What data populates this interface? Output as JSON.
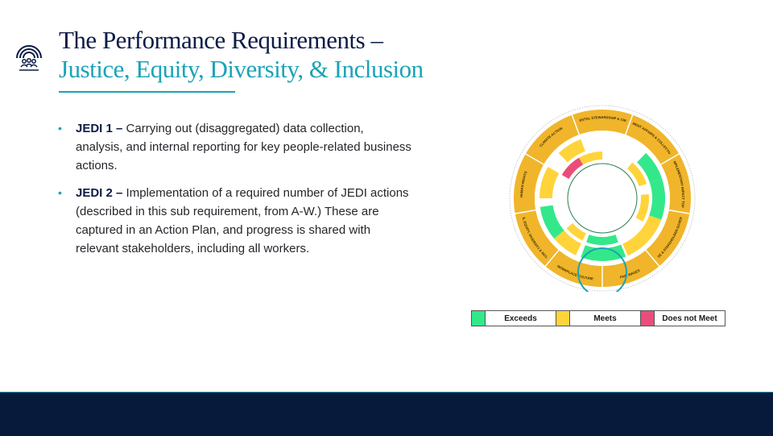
{
  "title": {
    "line1": "The Performance Requirements –",
    "line2": "Justice, Equity, Diversity, & Inclusion"
  },
  "bullets": [
    {
      "label": "JEDI 1 –",
      "text": " Carrying out (disaggregated) data collection, analysis, and internal reporting for key people-related business actions."
    },
    {
      "label": "JEDI 2 –",
      "text": " Implementation of a required number of JEDI actions (described in this sub requirement, from A-W.) These are captured in an Action Plan, and progress is shared with relevant stakeholders, including all workers."
    }
  ],
  "wheel": {
    "segments": [
      "GOVERNMENT AFFAIRS & COLLECTIVE ACTION",
      "COMPLEMENTARY IMPACT TOPICS",
      "PURPOSE & STAKEHOLDER GOVERNANCE",
      "FAIR WAGES",
      "WORKPLACE CULTURE",
      "JUSTICE, EQUITY, DIVERSITY & INCLUSION",
      "HUMAN RIGHTS",
      "CLIMATE ACTION",
      "ENVIRONMENTAL STEWARDSHIP & CIRCULARITY"
    ],
    "colors": {
      "exceeds": "#33e88a",
      "meets": "#ffd43a",
      "does_not_meet": "#ea4d7a",
      "ring": "#f0b52b",
      "highlight": "#1aa3b7"
    }
  },
  "legend": {
    "exceeds": "Exceeds",
    "meets": "Meets",
    "does_not_meet": "Does not Meet"
  }
}
